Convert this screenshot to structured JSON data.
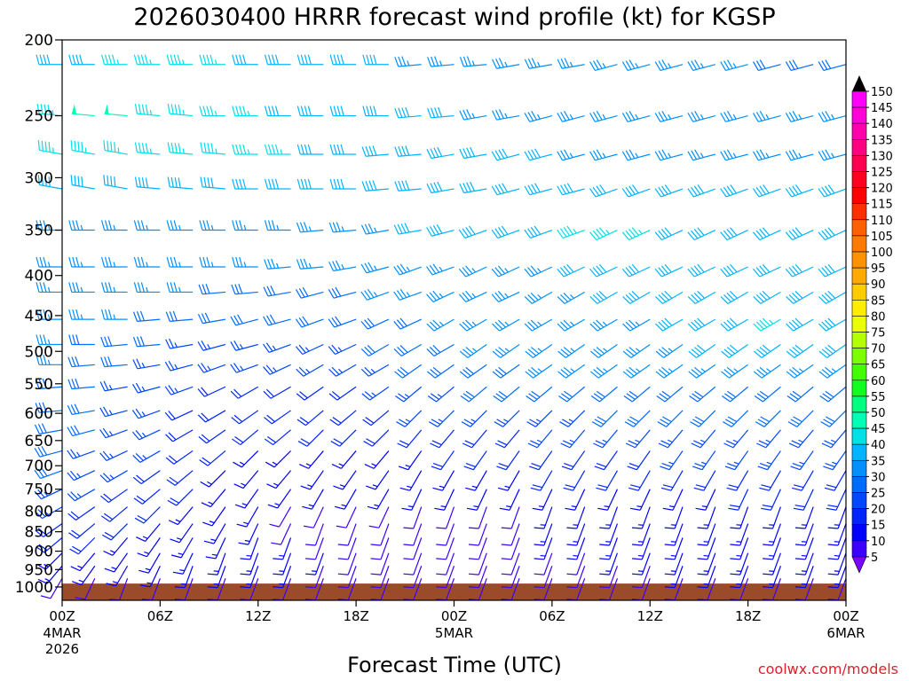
{
  "chart_data": {
    "type": "wind-barb-time-height",
    "title": "2026030400 HRRR forecast wind profile (kt) for KGSP",
    "xlabel": "Forecast Time (UTC)",
    "ylabel": "",
    "units": "kt",
    "x_ticks": [
      {
        "hour": 0,
        "label": "00Z",
        "date": "4MAR",
        "year": "2026"
      },
      {
        "hour": 6,
        "label": "06Z",
        "date": "",
        "year": ""
      },
      {
        "hour": 12,
        "label": "12Z",
        "date": "",
        "year": ""
      },
      {
        "hour": 18,
        "label": "18Z",
        "date": "",
        "year": ""
      },
      {
        "hour": 24,
        "label": "00Z",
        "date": "5MAR",
        "year": ""
      },
      {
        "hour": 30,
        "label": "06Z",
        "date": "",
        "year": ""
      },
      {
        "hour": 36,
        "label": "12Z",
        "date": "",
        "year": ""
      },
      {
        "hour": 42,
        "label": "18Z",
        "date": "",
        "year": ""
      },
      {
        "hour": 48,
        "label": "00Z",
        "date": "6MAR",
        "year": ""
      }
    ],
    "xlim": [
      0,
      48
    ],
    "y_ticks": [
      200,
      250,
      300,
      350,
      400,
      450,
      500,
      550,
      600,
      650,
      700,
      750,
      800,
      850,
      900,
      950,
      1000
    ],
    "ylim": [
      200,
      1040
    ],
    "y_scale": "log-pressure (hPa)",
    "levels_hpa": [
      215,
      250,
      280,
      310,
      350,
      390,
      420,
      455,
      490,
      520,
      555,
      595,
      630,
      670,
      710,
      750,
      790,
      830,
      865,
      905,
      940,
      975
    ],
    "forecast_hours": [
      0,
      2,
      4,
      6,
      8,
      10,
      12,
      14,
      16,
      18,
      20,
      22,
      24,
      26,
      28,
      30,
      32,
      34,
      36,
      38,
      40,
      42,
      44,
      46,
      48
    ],
    "speed_kt_rows": [
      [
        40,
        40,
        45,
        45,
        45,
        45,
        40,
        40,
        40,
        40,
        40,
        35,
        35,
        35,
        35,
        35,
        35,
        35,
        35,
        35,
        35,
        35,
        30,
        30,
        30
      ],
      [
        45,
        50,
        50,
        45,
        45,
        45,
        45,
        40,
        40,
        40,
        40,
        40,
        40,
        35,
        35,
        35,
        35,
        35,
        35,
        35,
        35,
        35,
        35,
        35,
        35
      ],
      [
        45,
        45,
        45,
        45,
        45,
        45,
        45,
        45,
        40,
        40,
        40,
        40,
        40,
        40,
        40,
        40,
        35,
        35,
        35,
        35,
        35,
        35,
        35,
        35,
        35
      ],
      [
        40,
        40,
        40,
        40,
        40,
        40,
        40,
        40,
        40,
        40,
        40,
        40,
        40,
        40,
        40,
        40,
        40,
        40,
        40,
        40,
        40,
        40,
        40,
        40,
        40
      ],
      [
        35,
        35,
        35,
        35,
        35,
        35,
        35,
        35,
        35,
        35,
        35,
        40,
        40,
        40,
        40,
        40,
        45,
        45,
        45,
        40,
        40,
        40,
        40,
        40,
        40
      ],
      [
        35,
        35,
        35,
        35,
        35,
        35,
        35,
        35,
        35,
        35,
        35,
        35,
        35,
        35,
        35,
        35,
        40,
        40,
        40,
        40,
        40,
        40,
        40,
        40,
        40
      ],
      [
        35,
        35,
        35,
        35,
        35,
        30,
        30,
        30,
        30,
        30,
        35,
        35,
        35,
        35,
        35,
        35,
        35,
        40,
        40,
        40,
        40,
        40,
        40,
        40,
        40
      ],
      [
        35,
        35,
        35,
        30,
        30,
        30,
        30,
        30,
        30,
        30,
        30,
        30,
        35,
        35,
        35,
        35,
        35,
        35,
        35,
        40,
        40,
        40,
        45,
        40,
        40
      ],
      [
        35,
        30,
        30,
        30,
        25,
        25,
        25,
        25,
        25,
        25,
        30,
        30,
        30,
        35,
        35,
        35,
        35,
        35,
        35,
        35,
        40,
        40,
        40,
        40,
        40
      ],
      [
        35,
        30,
        30,
        25,
        25,
        25,
        25,
        25,
        25,
        25,
        25,
        30,
        30,
        30,
        30,
        35,
        35,
        35,
        35,
        35,
        35,
        35,
        35,
        35,
        35
      ],
      [
        30,
        30,
        25,
        25,
        25,
        20,
        20,
        20,
        20,
        20,
        25,
        25,
        25,
        30,
        30,
        30,
        30,
        30,
        30,
        30,
        30,
        30,
        30,
        30,
        30
      ],
      [
        30,
        30,
        25,
        25,
        20,
        20,
        20,
        20,
        20,
        20,
        20,
        25,
        25,
        25,
        25,
        25,
        25,
        30,
        30,
        30,
        30,
        30,
        30,
        30,
        30
      ],
      [
        30,
        30,
        25,
        25,
        20,
        20,
        20,
        20,
        20,
        20,
        20,
        20,
        20,
        20,
        20,
        25,
        25,
        25,
        25,
        25,
        25,
        25,
        25,
        25,
        25
      ],
      [
        30,
        25,
        25,
        25,
        20,
        20,
        15,
        15,
        15,
        15,
        15,
        15,
        20,
        20,
        20,
        20,
        20,
        20,
        20,
        25,
        25,
        25,
        25,
        25,
        25
      ],
      [
        30,
        25,
        25,
        20,
        20,
        15,
        15,
        15,
        15,
        15,
        15,
        15,
        15,
        15,
        15,
        20,
        20,
        20,
        20,
        20,
        20,
        20,
        20,
        20,
        20
      ],
      [
        25,
        25,
        20,
        20,
        20,
        15,
        15,
        15,
        15,
        15,
        15,
        15,
        15,
        15,
        15,
        15,
        15,
        15,
        15,
        15,
        15,
        20,
        20,
        20,
        20
      ],
      [
        25,
        20,
        20,
        20,
        15,
        15,
        15,
        10,
        10,
        10,
        10,
        10,
        10,
        10,
        10,
        15,
        15,
        15,
        15,
        15,
        15,
        15,
        15,
        15,
        15
      ],
      [
        20,
        20,
        20,
        15,
        15,
        15,
        15,
        10,
        10,
        10,
        10,
        10,
        10,
        10,
        10,
        15,
        15,
        15,
        15,
        15,
        15,
        15,
        15,
        15,
        15
      ],
      [
        20,
        20,
        15,
        15,
        15,
        15,
        15,
        15,
        10,
        10,
        10,
        10,
        10,
        10,
        10,
        15,
        15,
        15,
        15,
        15,
        15,
        15,
        15,
        15,
        15
      ],
      [
        15,
        15,
        15,
        15,
        15,
        15,
        15,
        15,
        15,
        10,
        10,
        10,
        10,
        10,
        10,
        10,
        10,
        15,
        15,
        15,
        15,
        15,
        15,
        15,
        15
      ],
      [
        15,
        15,
        15,
        15,
        15,
        15,
        15,
        15,
        10,
        10,
        10,
        10,
        10,
        10,
        10,
        10,
        10,
        10,
        10,
        15,
        15,
        15,
        15,
        15,
        15
      ],
      [
        10,
        10,
        10,
        10,
        10,
        10,
        10,
        10,
        10,
        10,
        10,
        10,
        10,
        10,
        10,
        10,
        10,
        10,
        10,
        10,
        10,
        10,
        10,
        10,
        10
      ]
    ],
    "direction_deg_rows": [
      [
        270,
        270,
        270,
        270,
        270,
        270,
        270,
        270,
        270,
        270,
        270,
        265,
        265,
        265,
        260,
        260,
        260,
        255,
        255,
        255,
        255,
        255,
        255,
        255,
        255
      ],
      [
        275,
        275,
        275,
        275,
        275,
        270,
        270,
        270,
        270,
        270,
        270,
        265,
        265,
        260,
        260,
        255,
        255,
        255,
        255,
        255,
        255,
        255,
        255,
        255,
        255
      ],
      [
        280,
        280,
        280,
        275,
        275,
        275,
        270,
        270,
        270,
        270,
        265,
        265,
        260,
        260,
        255,
        255,
        255,
        255,
        255,
        255,
        255,
        255,
        255,
        255,
        255
      ],
      [
        280,
        280,
        280,
        275,
        275,
        275,
        270,
        270,
        270,
        270,
        265,
        265,
        260,
        260,
        255,
        255,
        255,
        250,
        250,
        250,
        250,
        250,
        250,
        250,
        250
      ],
      [
        270,
        270,
        270,
        270,
        270,
        270,
        270,
        270,
        265,
        265,
        260,
        260,
        255,
        250,
        250,
        250,
        250,
        245,
        245,
        245,
        245,
        245,
        245,
        245,
        245
      ],
      [
        270,
        270,
        270,
        270,
        270,
        270,
        270,
        265,
        265,
        260,
        255,
        250,
        250,
        245,
        245,
        245,
        245,
        245,
        245,
        245,
        245,
        245,
        245,
        245,
        245
      ],
      [
        270,
        270,
        270,
        270,
        270,
        265,
        265,
        260,
        255,
        255,
        250,
        250,
        245,
        245,
        245,
        240,
        240,
        240,
        240,
        240,
        240,
        240,
        240,
        240,
        240
      ],
      [
        270,
        270,
        270,
        265,
        265,
        260,
        255,
        255,
        250,
        250,
        245,
        245,
        240,
        240,
        240,
        240,
        240,
        240,
        240,
        240,
        240,
        240,
        240,
        240,
        240
      ],
      [
        270,
        270,
        265,
        265,
        260,
        255,
        255,
        250,
        245,
        245,
        240,
        240,
        240,
        235,
        235,
        235,
        235,
        235,
        235,
        235,
        235,
        235,
        235,
        235,
        235
      ],
      [
        270,
        265,
        265,
        260,
        255,
        250,
        250,
        245,
        240,
        240,
        240,
        235,
        235,
        235,
        235,
        235,
        235,
        235,
        235,
        235,
        235,
        235,
        235,
        235,
        235
      ],
      [
        265,
        265,
        260,
        255,
        250,
        245,
        240,
        240,
        235,
        235,
        235,
        230,
        230,
        230,
        230,
        230,
        230,
        230,
        230,
        230,
        230,
        230,
        230,
        230,
        230
      ],
      [
        265,
        260,
        255,
        250,
        245,
        240,
        235,
        235,
        230,
        230,
        230,
        225,
        225,
        225,
        225,
        225,
        225,
        225,
        225,
        225,
        225,
        225,
        225,
        225,
        225
      ],
      [
        260,
        255,
        250,
        245,
        240,
        235,
        230,
        230,
        225,
        225,
        225,
        220,
        220,
        220,
        220,
        220,
        220,
        220,
        220,
        220,
        220,
        220,
        220,
        220,
        220
      ],
      [
        255,
        250,
        245,
        240,
        235,
        230,
        225,
        225,
        220,
        220,
        220,
        215,
        215,
        215,
        215,
        215,
        215,
        215,
        215,
        215,
        215,
        215,
        215,
        215,
        215
      ],
      [
        250,
        245,
        240,
        235,
        230,
        225,
        220,
        220,
        215,
        215,
        215,
        210,
        210,
        210,
        210,
        210,
        210,
        210,
        210,
        210,
        210,
        210,
        210,
        210,
        210
      ],
      [
        245,
        240,
        235,
        230,
        225,
        220,
        215,
        215,
        210,
        210,
        210,
        205,
        205,
        205,
        205,
        205,
        205,
        205,
        205,
        205,
        205,
        205,
        205,
        205,
        205
      ],
      [
        240,
        235,
        230,
        225,
        220,
        215,
        210,
        210,
        205,
        205,
        205,
        200,
        200,
        200,
        200,
        200,
        200,
        200,
        200,
        200,
        200,
        200,
        200,
        200,
        200
      ],
      [
        235,
        230,
        225,
        220,
        215,
        210,
        205,
        205,
        200,
        200,
        200,
        200,
        200,
        200,
        200,
        200,
        200,
        200,
        200,
        200,
        200,
        200,
        200,
        200,
        200
      ],
      [
        230,
        225,
        220,
        215,
        210,
        205,
        200,
        200,
        200,
        200,
        200,
        200,
        200,
        200,
        200,
        200,
        200,
        200,
        200,
        200,
        200,
        200,
        200,
        200,
        200
      ],
      [
        225,
        220,
        215,
        210,
        205,
        200,
        200,
        200,
        200,
        200,
        200,
        200,
        200,
        200,
        200,
        200,
        200,
        200,
        200,
        200,
        200,
        200,
        200,
        200,
        200
      ],
      [
        220,
        215,
        210,
        205,
        200,
        200,
        200,
        200,
        200,
        200,
        200,
        200,
        200,
        200,
        200,
        200,
        200,
        200,
        200,
        200,
        200,
        200,
        200,
        200,
        200
      ],
      [
        210,
        205,
        200,
        200,
        200,
        200,
        200,
        200,
        200,
        200,
        200,
        200,
        200,
        200,
        200,
        200,
        200,
        200,
        200,
        200,
        200,
        200,
        200,
        200,
        200
      ]
    ],
    "surface_pressure_hpa": 990,
    "surface_color": "#9c4b2a",
    "colorbar": {
      "min_label": "5",
      "max_label": "150",
      "labels": [
        "150",
        "145",
        "140",
        "135",
        "130",
        "125",
        "120",
        "115",
        "110",
        "105",
        "100",
        "95",
        "90",
        "85",
        "80",
        "75",
        "70",
        "65",
        "60",
        "55",
        "50",
        "45",
        "40",
        "35",
        "30",
        "25",
        "20",
        "15",
        "10",
        "5"
      ],
      "colors": [
        "#ff00ff",
        "#ff00d8",
        "#ff00aa",
        "#ff0080",
        "#ff0050",
        "#ff0020",
        "#ff0000",
        "#ff3000",
        "#ff6000",
        "#ff7a00",
        "#ff9200",
        "#ffaa00",
        "#ffcc00",
        "#ffee00",
        "#eaff00",
        "#b4ff00",
        "#7cff00",
        "#44ff00",
        "#10ff20",
        "#00ff80",
        "#00ffb4",
        "#00e0e6",
        "#00b4ff",
        "#0090ff",
        "#006cff",
        "#0048ff",
        "#0024ff",
        "#0000ff",
        "#3c00ff",
        "#7a00ff"
      ]
    },
    "credit": "coolwx.com/models"
  }
}
